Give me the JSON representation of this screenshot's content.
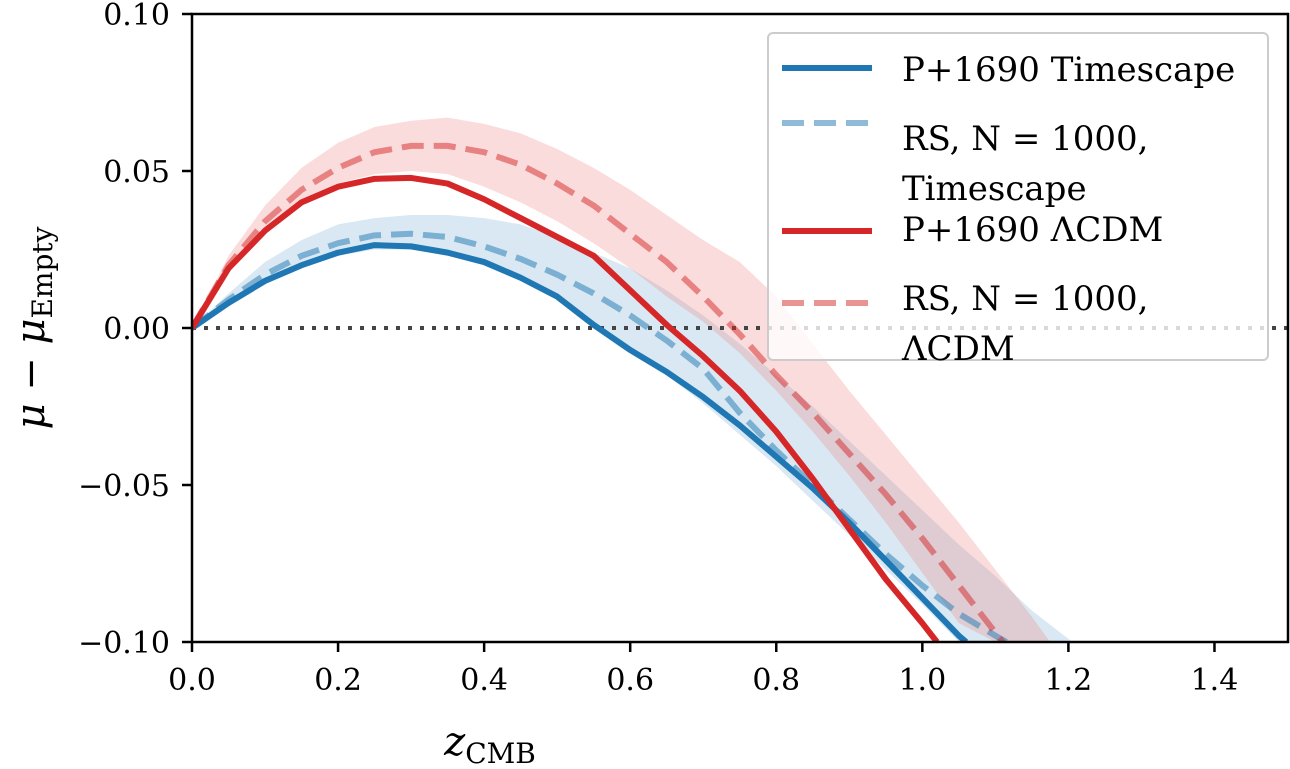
{
  "chart_data": {
    "type": "line",
    "xlabel": "z",
    "xlabel_sub": "CMB",
    "ylabel": "μ − μ",
    "ylabel_sub": "Empty",
    "xlim": [
      0.0,
      1.5
    ],
    "ylim": [
      -0.1,
      0.1
    ],
    "xticks": [
      "0.0",
      "0.2",
      "0.4",
      "0.6",
      "0.8",
      "1.0",
      "1.2",
      "1.4"
    ],
    "xtick_values": [
      0.0,
      0.2,
      0.4,
      0.6,
      0.8,
      1.0,
      1.2,
      1.4
    ],
    "yticks": [
      "0.10",
      "0.05",
      "0.00",
      "−0.05",
      "−0.10"
    ],
    "ytick_values": [
      0.1,
      0.05,
      0.0,
      -0.05,
      -0.1
    ],
    "grid": false,
    "legend_position": "top-right",
    "reference_line": {
      "y": 0.0,
      "style": "dotted",
      "color": "#444444"
    },
    "bands": [
      {
        "color": "#1f77b4",
        "opacity": 0.17,
        "x": [
          0,
          0.05,
          0.1,
          0.15,
          0.2,
          0.25,
          0.3,
          0.35,
          0.4,
          0.45,
          0.5,
          0.55,
          0.6,
          0.65,
          0.7,
          0.75,
          0.8,
          0.85,
          0.9,
          0.95,
          1.0,
          1.05,
          1.1,
          1.15,
          1.2,
          1.205
        ],
        "upper": [
          0,
          0.011,
          0.021,
          0.028,
          0.033,
          0.035,
          0.036,
          0.036,
          0.035,
          0.033,
          0.029,
          0.024,
          0.019,
          0.012,
          0.004,
          -0.005,
          -0.015,
          -0.025,
          -0.036,
          -0.047,
          -0.058,
          -0.069,
          -0.079,
          -0.09,
          -0.099,
          -0.1
        ],
        "lower": [
          0,
          0.007,
          0.014,
          0.019,
          0.023,
          0.025,
          0.025,
          0.023,
          0.02,
          0.015,
          0.009,
          0.001,
          -0.007,
          -0.015,
          -0.024,
          -0.034,
          -0.044,
          -0.055,
          -0.066,
          -0.077,
          -0.088,
          -0.1,
          -0.1,
          -0.1,
          -0.1,
          -0.1
        ]
      },
      {
        "color": "#f08080",
        "opacity": 0.28,
        "x": [
          0,
          0.05,
          0.1,
          0.15,
          0.2,
          0.25,
          0.3,
          0.35,
          0.4,
          0.45,
          0.5,
          0.55,
          0.6,
          0.65,
          0.7,
          0.75,
          0.8,
          0.85,
          0.9,
          0.95,
          1.0,
          1.05,
          1.1,
          1.15,
          1.175
        ],
        "upper": [
          0,
          0.023,
          0.039,
          0.051,
          0.059,
          0.064,
          0.066,
          0.067,
          0.065,
          0.062,
          0.057,
          0.051,
          0.044,
          0.036,
          0.028,
          0.021,
          0.01,
          -0.005,
          -0.02,
          -0.034,
          -0.048,
          -0.062,
          -0.077,
          -0.092,
          -0.1
        ],
        "lower": [
          0,
          0.018,
          0.03,
          0.04,
          0.046,
          0.049,
          0.05,
          0.049,
          0.045,
          0.04,
          0.034,
          0.027,
          0.019,
          0.01,
          0.002,
          -0.008,
          -0.02,
          -0.033,
          -0.047,
          -0.062,
          -0.078,
          -0.094,
          -0.1,
          -0.1,
          -0.1
        ]
      }
    ],
    "series": [
      {
        "name": "P+1690 Timescape",
        "color": "#1f77b4",
        "dashed": false,
        "opacity": 1,
        "x": [
          0,
          0.05,
          0.1,
          0.15,
          0.2,
          0.25,
          0.3,
          0.35,
          0.4,
          0.45,
          0.5,
          0.55,
          0.6,
          0.65,
          0.7,
          0.75,
          0.8,
          0.85,
          0.9,
          0.95,
          1.0,
          1.05,
          1.06
        ],
        "y": [
          0,
          0.008,
          0.015,
          0.02,
          0.024,
          0.0264,
          0.026,
          0.024,
          0.021,
          0.016,
          0.01,
          0.001,
          -0.007,
          -0.014,
          -0.022,
          -0.031,
          -0.041,
          -0.051,
          -0.062,
          -0.074,
          -0.086,
          -0.098,
          -0.1
        ]
      },
      {
        "name": "RS, N = 1000, Timescape",
        "color": "#1f77b4",
        "dashed": true,
        "opacity": 0.5,
        "x": [
          0,
          0.05,
          0.1,
          0.15,
          0.2,
          0.25,
          0.3,
          0.35,
          0.4,
          0.45,
          0.5,
          0.55,
          0.6,
          0.65,
          0.7,
          0.75,
          0.8,
          0.85,
          0.9,
          0.95,
          1.0,
          1.05,
          1.1,
          1.115
        ],
        "y": [
          0,
          0.009,
          0.017,
          0.023,
          0.027,
          0.0295,
          0.03,
          0.029,
          0.026,
          0.022,
          0.017,
          0.011,
          0.004,
          -0.004,
          -0.013,
          -0.027,
          -0.039,
          -0.05,
          -0.061,
          -0.072,
          -0.082,
          -0.091,
          -0.098,
          -0.1
        ]
      },
      {
        "name": "P+1690 ΛCDM",
        "color": "#d62728",
        "dashed": false,
        "opacity": 1,
        "x": [
          0,
          0.05,
          0.1,
          0.15,
          0.2,
          0.25,
          0.3,
          0.35,
          0.4,
          0.45,
          0.5,
          0.55,
          0.6,
          0.65,
          0.7,
          0.75,
          0.8,
          0.85,
          0.9,
          0.95,
          1.0,
          1.02
        ],
        "y": [
          0,
          0.019,
          0.031,
          0.04,
          0.045,
          0.0475,
          0.0478,
          0.046,
          0.041,
          0.035,
          0.029,
          0.023,
          0.012,
          0.001,
          -0.009,
          -0.02,
          -0.033,
          -0.048,
          -0.064,
          -0.08,
          -0.094,
          -0.1
        ]
      },
      {
        "name": "RS, N = 1000, ΛCDM",
        "color": "#d62728",
        "dashed": true,
        "opacity": 0.5,
        "x": [
          0,
          0.05,
          0.1,
          0.15,
          0.2,
          0.25,
          0.3,
          0.35,
          0.4,
          0.45,
          0.5,
          0.55,
          0.6,
          0.65,
          0.7,
          0.75,
          0.8,
          0.85,
          0.9,
          0.95,
          1.0,
          1.05,
          1.1,
          1.11
        ],
        "y": [
          0,
          0.02,
          0.034,
          0.044,
          0.051,
          0.056,
          0.058,
          0.058,
          0.056,
          0.052,
          0.046,
          0.039,
          0.03,
          0.021,
          0.01,
          -0.002,
          -0.015,
          -0.027,
          -0.04,
          -0.053,
          -0.067,
          -0.082,
          -0.097,
          -0.1
        ]
      }
    ],
    "legend": [
      {
        "line1": "P+1690 Timescape",
        "line2": ""
      },
      {
        "line1": "RS, N = 1000,",
        "line2": "Timescape"
      },
      {
        "line1": "P+1690 ΛCDM",
        "line2": ""
      },
      {
        "line1": "RS, N = 1000,",
        "line2": "ΛCDM"
      }
    ]
  }
}
